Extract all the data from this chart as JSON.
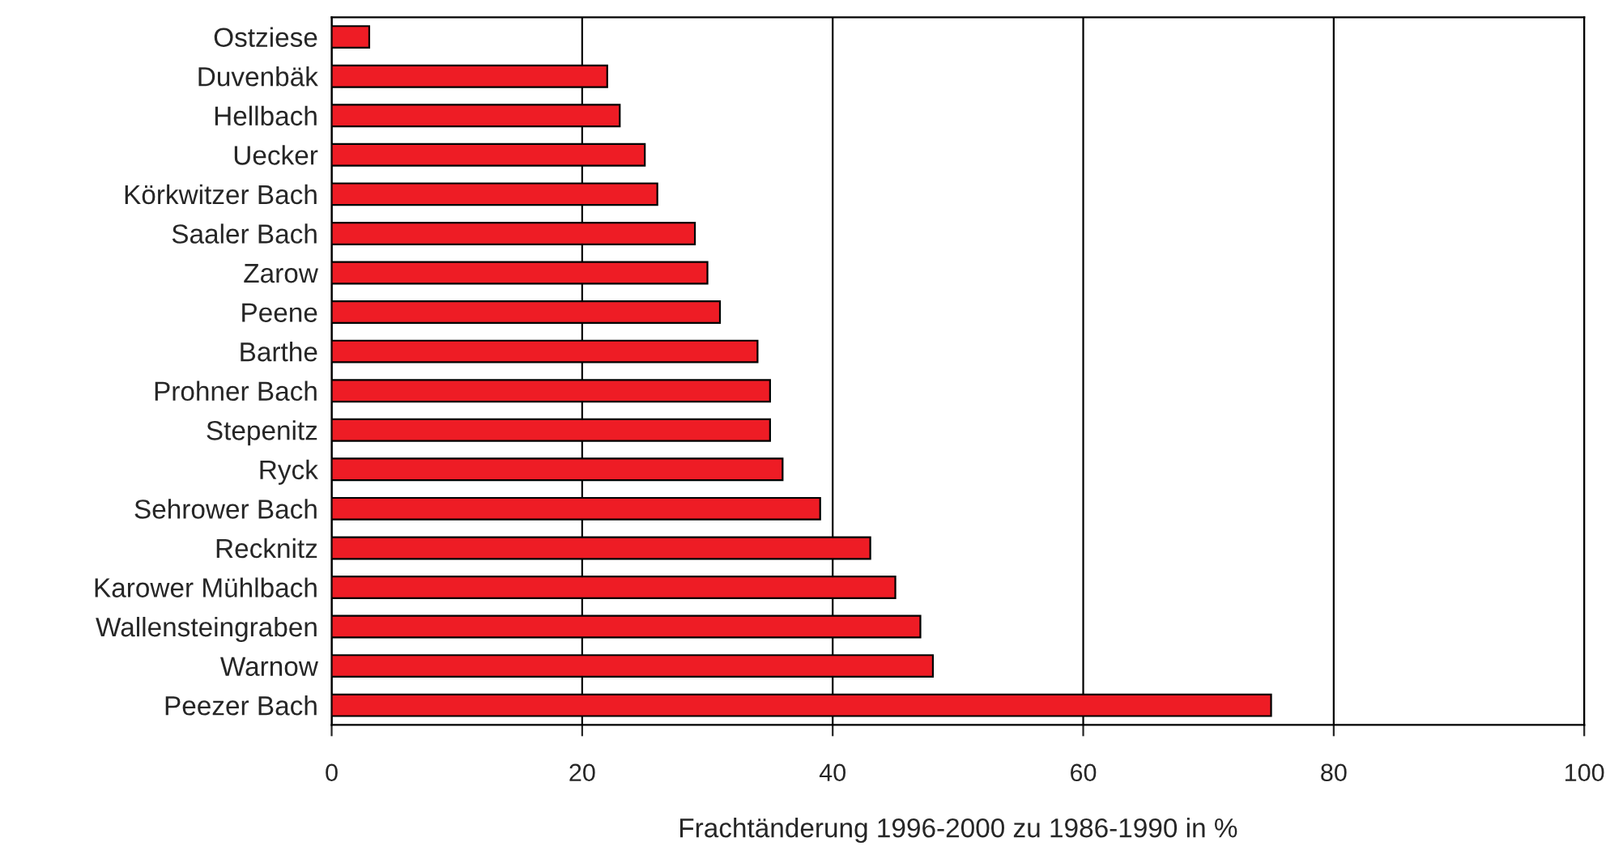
{
  "chart_data": {
    "type": "bar",
    "orientation": "horizontal",
    "xlabel": "Frachtänderung 1996-2000 zu 1986-1990 in %",
    "categories": [
      "Ostziese",
      "Duvenbäk",
      "Hellbach",
      "Uecker",
      "Körkwitzer Bach",
      "Saaler Bach",
      "Zarow",
      "Peene",
      "Barthe",
      "Prohner Bach",
      "Stepenitz",
      "Ryck",
      "Sehrower Bach",
      "Recknitz",
      "Karower Mühlbach",
      "Wallensteingraben",
      "Warnow",
      "Peezer Bach"
    ],
    "values": [
      3,
      22,
      23,
      25,
      26,
      29,
      30,
      31,
      34,
      35,
      35,
      36,
      39,
      43,
      45,
      47,
      48,
      75
    ],
    "color": "#ee1c25",
    "xlim": [
      0,
      100
    ],
    "xticks": [
      0,
      20,
      40,
      60,
      80,
      100
    ],
    "grid": "x"
  }
}
